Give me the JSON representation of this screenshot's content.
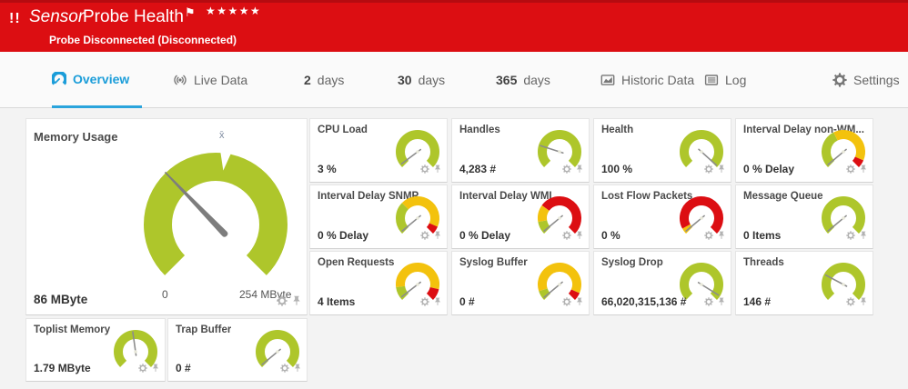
{
  "colors": {
    "green": "#aec62b",
    "yellow": "#f3c20d",
    "red": "#dc0e12",
    "accent_blue": "#1b9dd9",
    "needle": "#8c8c8c",
    "icon_gray": "#b2b2b2"
  },
  "header": {
    "alert_icon": "!!",
    "kind_label": "Sensor",
    "title": "Probe Health",
    "flag_icon": "⚑",
    "stars": "★★★★★",
    "status_line": "Probe Disconnected (Disconnected)"
  },
  "tabs": [
    {
      "id": "overview",
      "icon": "gauge",
      "label": "Overview",
      "active": true
    },
    {
      "id": "live-data",
      "icon": "broadcast",
      "label": "Live Data"
    },
    {
      "id": "2-days",
      "num": "2",
      "label": "days"
    },
    {
      "id": "30-days",
      "num": "30",
      "label": "days"
    },
    {
      "id": "365-days",
      "num": "365",
      "label": "days"
    },
    {
      "id": "historic-data",
      "icon": "chart",
      "label": "Historic Data"
    },
    {
      "id": "log",
      "icon": "log",
      "label": "Log"
    },
    {
      "id": "settings",
      "icon": "gear",
      "label": "Settings"
    }
  ],
  "main_gauge": {
    "title": "Memory Usage",
    "value": "86 MByte",
    "scale_min": "0",
    "scale_max": "254 MByte",
    "avg_label": "x̄",
    "needle_deg": -44,
    "avg_notch_deg": 8,
    "segments": [
      [
        "green",
        1
      ]
    ]
  },
  "gauges": [
    {
      "id": "cpu-load",
      "title": "CPU Load",
      "value": "3 %",
      "needle_deg": -127,
      "segments": [
        [
          "green",
          1
        ]
      ]
    },
    {
      "id": "handles",
      "title": "Handles",
      "value": "4,283 #",
      "needle_deg": -72,
      "segments": [
        [
          "green",
          1
        ]
      ]
    },
    {
      "id": "health",
      "title": "Health",
      "value": "100 %",
      "needle_deg": 132,
      "segments": [
        [
          "green",
          1
        ]
      ]
    },
    {
      "id": "interval-delay-non-wmi",
      "title": "Interval Delay non-WM...",
      "value": "0 % Delay",
      "needle_deg": -130,
      "segments": [
        [
          "green",
          0.4
        ],
        [
          "yellow",
          0.52
        ],
        [
          "red",
          0.08
        ]
      ]
    },
    {
      "id": "interval-delay-snmp",
      "title": "Interval Delay SNMP",
      "value": "0 % Delay",
      "needle_deg": -130,
      "segments": [
        [
          "green",
          0.33
        ],
        [
          "yellow",
          0.59
        ],
        [
          "red",
          0.08
        ]
      ]
    },
    {
      "id": "interval-delay-wmi",
      "title": "Interval Delay WMI",
      "value": "0 % Delay",
      "needle_deg": -130,
      "segments": [
        [
          "green",
          0.13
        ],
        [
          "yellow",
          0.17
        ],
        [
          "red",
          0.7
        ]
      ]
    },
    {
      "id": "lost-flow-packets",
      "title": "Lost Flow Packets",
      "value": "0 %",
      "needle_deg": -130,
      "segments": [
        [
          "yellow",
          0.06
        ],
        [
          "red",
          0.94
        ]
      ]
    },
    {
      "id": "message-queue",
      "title": "Message Queue",
      "value": "0 Items",
      "needle_deg": -130,
      "segments": [
        [
          "green",
          1
        ]
      ]
    },
    {
      "id": "open-requests",
      "title": "Open Requests",
      "value": "4 Items",
      "needle_deg": -128,
      "segments": [
        [
          "green",
          0.14
        ],
        [
          "yellow",
          0.74
        ],
        [
          "red",
          0.12
        ]
      ]
    },
    {
      "id": "syslog-buffer",
      "title": "Syslog Buffer",
      "value": "0 #",
      "needle_deg": -130,
      "segments": [
        [
          "green",
          0.1
        ],
        [
          "yellow",
          0.82
        ],
        [
          "red",
          0.08
        ]
      ]
    },
    {
      "id": "syslog-drop",
      "title": "Syslog Drop",
      "value": "66,020,315,136 #",
      "needle_deg": 122,
      "segments": [
        [
          "green",
          1
        ]
      ]
    },
    {
      "id": "threads",
      "title": "Threads",
      "value": "146 #",
      "needle_deg": -62,
      "segments": [
        [
          "green",
          1
        ]
      ]
    },
    {
      "id": "toplist-memory",
      "title": "Toplist Memory",
      "value": "1.79 MByte",
      "needle_deg": -8,
      "segments": [
        [
          "green",
          1
        ]
      ]
    },
    {
      "id": "trap-buffer",
      "title": "Trap Buffer",
      "value": "0 #",
      "needle_deg": -130,
      "segments": [
        [
          "green",
          1
        ]
      ]
    }
  ]
}
